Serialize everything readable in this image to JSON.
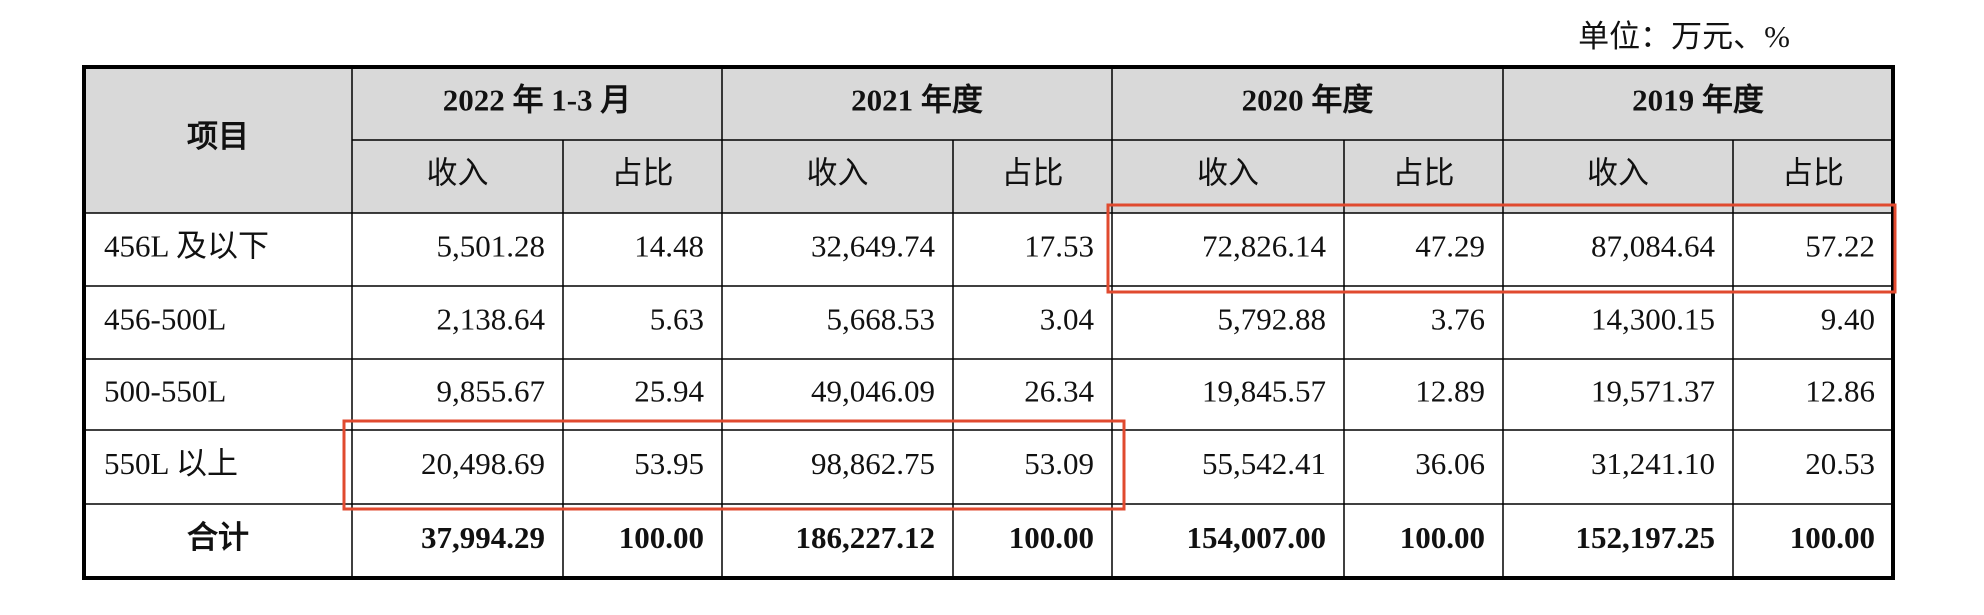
{
  "unit": "单位：万元、%",
  "table": {
    "corner": "项目",
    "periods": [
      {
        "name": "2022 年 1-3 月",
        "columns": [
          "收入",
          "占比"
        ]
      },
      {
        "name": "2021 年度",
        "columns": [
          "收入",
          "占比"
        ]
      },
      {
        "name": "2020 年度",
        "columns": [
          "收入",
          "占比"
        ]
      },
      {
        "name": "2019 年度",
        "columns": [
          "收入",
          "占比"
        ]
      }
    ],
    "rows": [
      [
        "456L 及以下",
        "5,501.28",
        "14.48",
        "32,649.74",
        "17.53",
        "72,826.14",
        "47.29",
        "87,084.64",
        "57.22"
      ],
      [
        "456-500L",
        "2,138.64",
        "5.63",
        "5,668.53",
        "3.04",
        "5,792.88",
        "3.76",
        "14,300.15",
        "9.40"
      ],
      [
        "500-550L",
        "9,855.67",
        "25.94",
        "49,046.09",
        "26.34",
        "19,845.57",
        "12.89",
        "19,571.37",
        "12.86"
      ],
      [
        "550L 以上",
        "20,498.69",
        "53.95",
        "98,862.75",
        "53.09",
        "55,542.41",
        "36.06",
        "31,241.10",
        "20.53"
      ]
    ],
    "total": [
      "合计",
      "37,994.29",
      "100.00",
      "186,227.12",
      "100.00",
      "154,007.00",
      "100.00",
      "152,197.25",
      "100.00"
    ]
  }
}
